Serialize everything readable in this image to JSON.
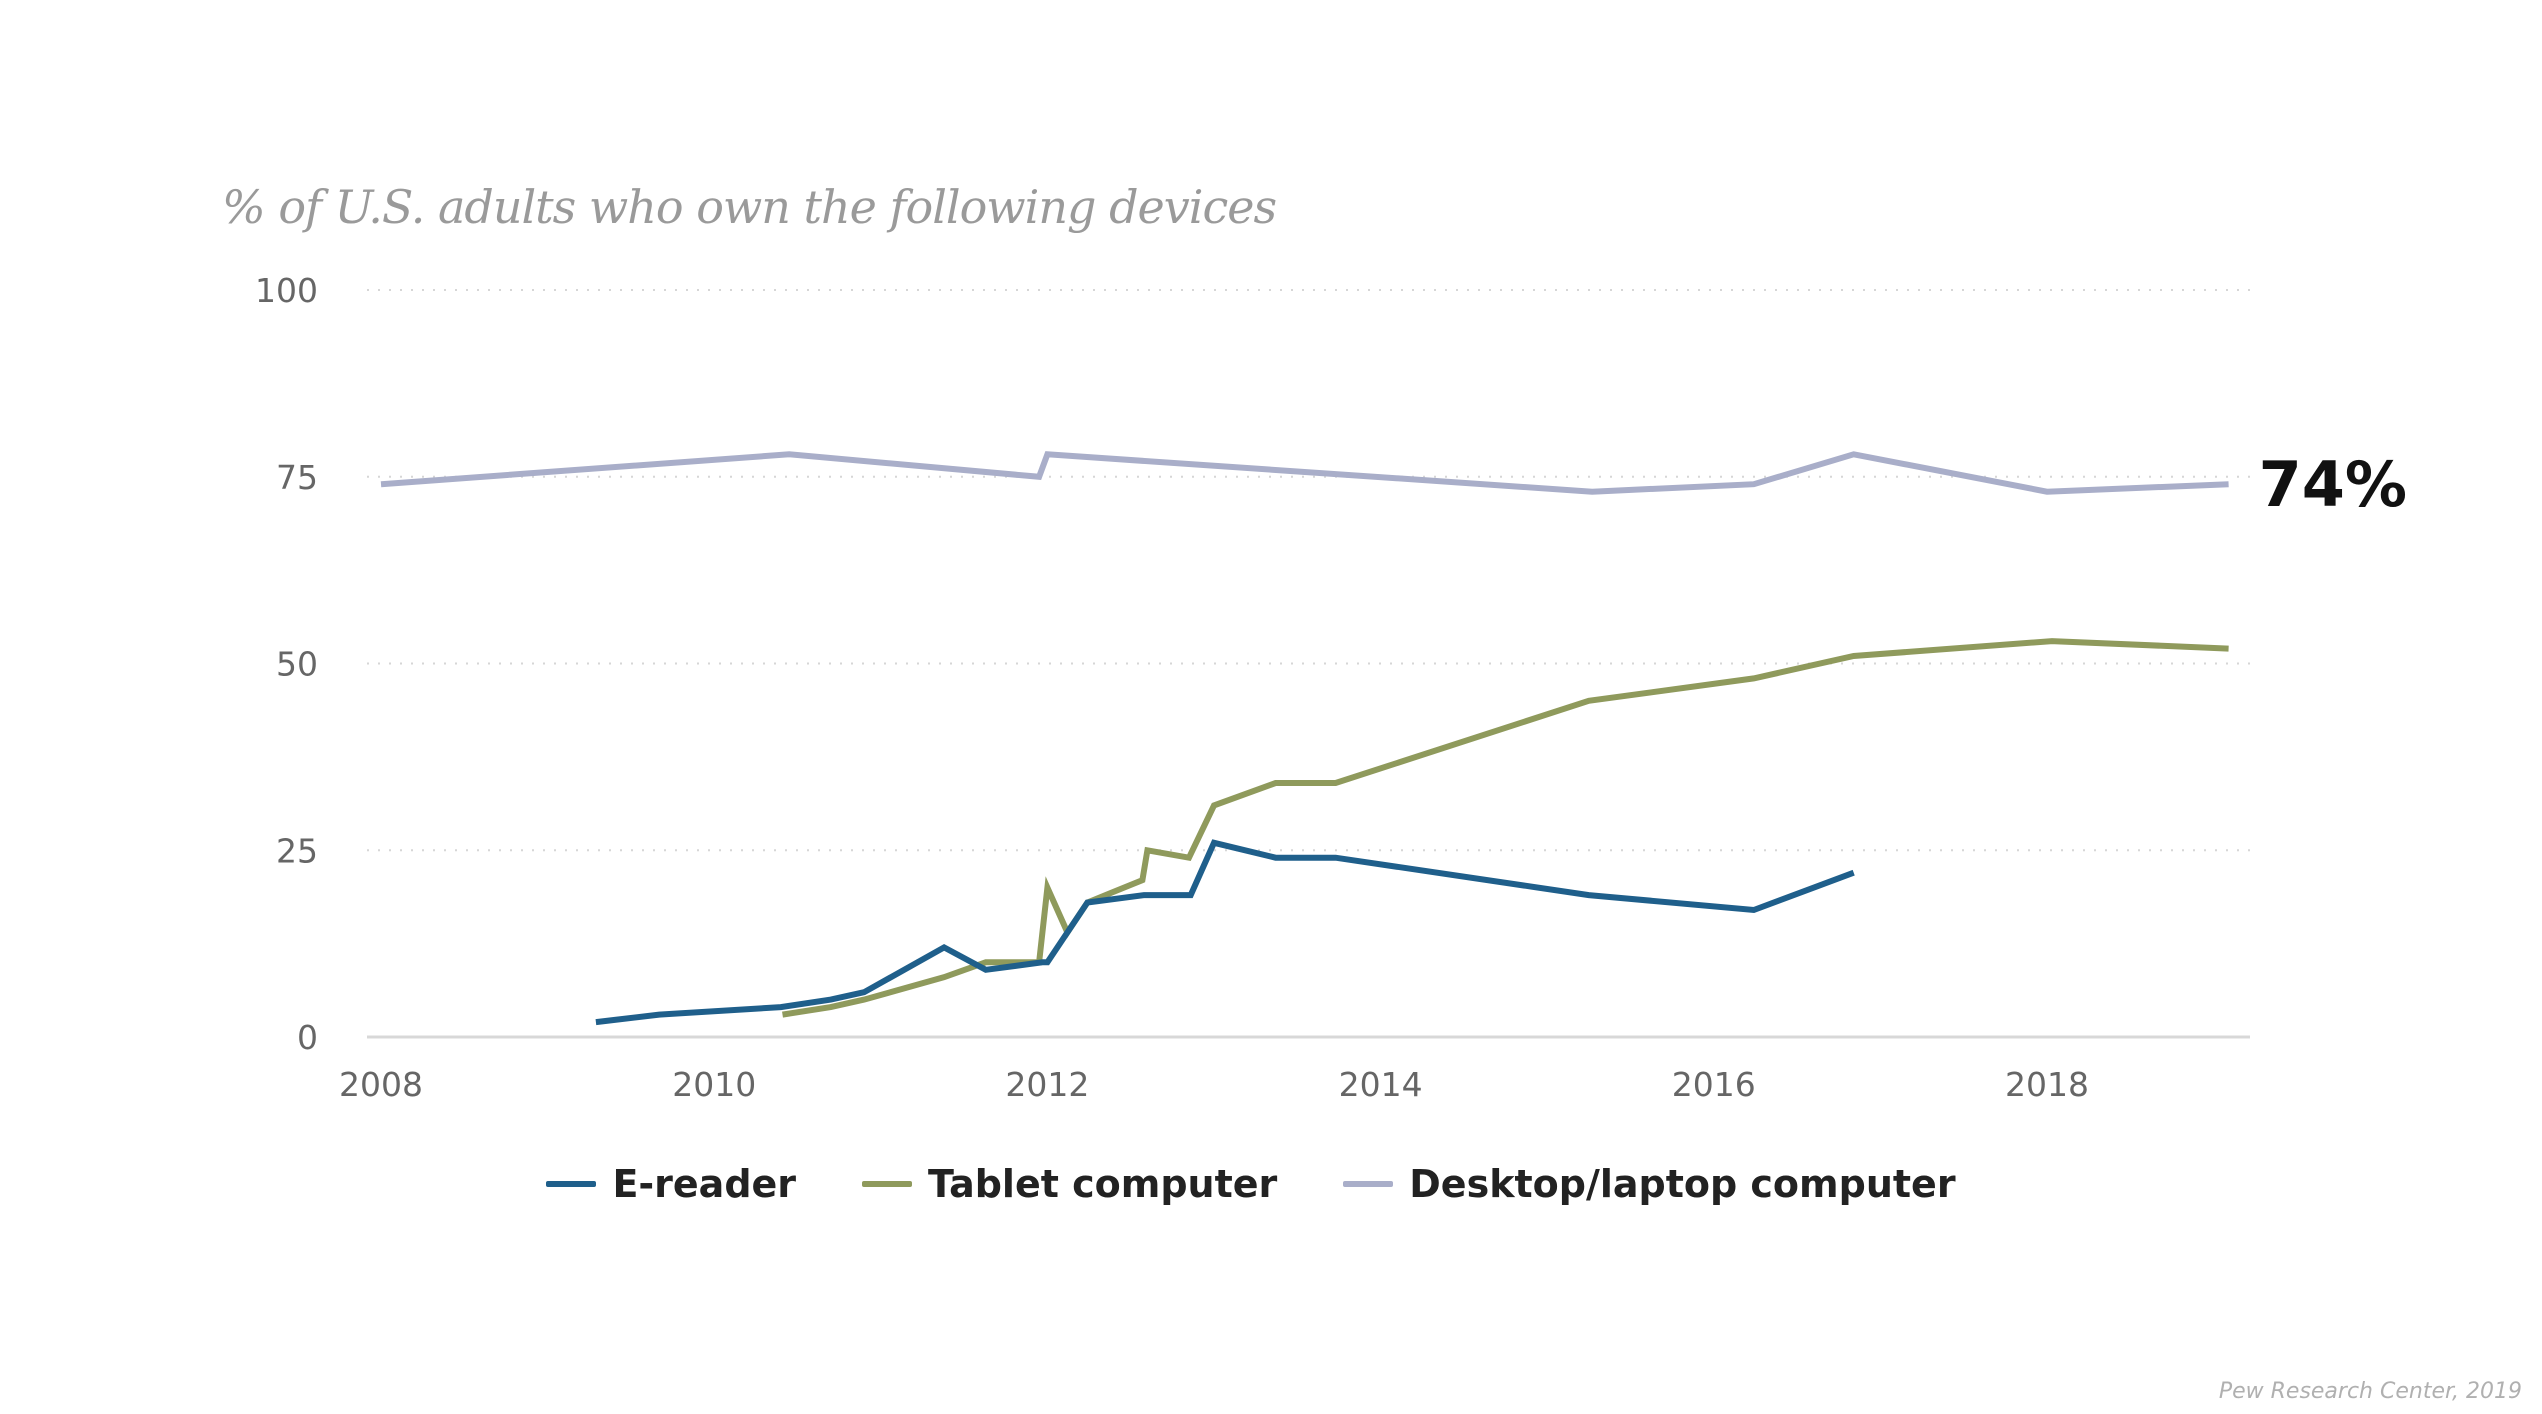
{
  "chart_data": {
    "type": "line",
    "title": "% of U.S. adults who own the following devices",
    "xlabel": "",
    "ylabel": "",
    "xlim": [
      2008,
      2019.3
    ],
    "ylim": [
      0,
      100
    ],
    "x_ticks": [
      "2008",
      "2010",
      "2012",
      "2014",
      "2016",
      "2018"
    ],
    "x_tick_values": [
      2008,
      2010,
      2012,
      2014,
      2016,
      2018
    ],
    "y_ticks": [
      "0",
      "25",
      "50",
      "75",
      "100"
    ],
    "y_tick_values": [
      0,
      25,
      50,
      75,
      100
    ],
    "grid": "horizontal dotted",
    "legend_position": "bottom-center",
    "series": [
      {
        "name": "E-reader",
        "color": "#1f5f8b",
        "points": [
          [
            2009.29,
            2
          ],
          [
            2009.67,
            3
          ],
          [
            2010.4,
            4
          ],
          [
            2010.7,
            5
          ],
          [
            2010.9,
            6
          ],
          [
            2011.38,
            12
          ],
          [
            2011.63,
            9
          ],
          [
            2011.97,
            10
          ],
          [
            2012.0,
            10
          ],
          [
            2012.24,
            18
          ],
          [
            2012.58,
            19
          ],
          [
            2012.86,
            19
          ],
          [
            2013.0,
            26
          ],
          [
            2013.37,
            24
          ],
          [
            2013.73,
            24
          ],
          [
            2015.25,
            19
          ],
          [
            2016.24,
            17
          ],
          [
            2016.84,
            22
          ]
        ]
      },
      {
        "name": "Tablet computer",
        "color": "#8f9a5c",
        "points": [
          [
            2010.41,
            3
          ],
          [
            2010.7,
            4
          ],
          [
            2010.9,
            5
          ],
          [
            2011.38,
            8
          ],
          [
            2011.63,
            10
          ],
          [
            2011.95,
            10
          ],
          [
            2012.0,
            20
          ],
          [
            2012.12,
            14
          ],
          [
            2012.24,
            18
          ],
          [
            2012.57,
            21
          ],
          [
            2012.6,
            25
          ],
          [
            2012.85,
            24
          ],
          [
            2013.0,
            31
          ],
          [
            2013.37,
            34
          ],
          [
            2013.73,
            34
          ],
          [
            2015.25,
            45
          ],
          [
            2016.24,
            48
          ],
          [
            2016.84,
            51
          ],
          [
            2018.03,
            53
          ],
          [
            2019.09,
            52
          ]
        ]
      },
      {
        "name": "Desktop/laptop computer",
        "color": "#a9aec9",
        "points": [
          [
            2008.0,
            74
          ],
          [
            2010.45,
            78
          ],
          [
            2011.95,
            75
          ],
          [
            2012.0,
            78
          ],
          [
            2015.27,
            73
          ],
          [
            2016.24,
            74
          ],
          [
            2016.84,
            78
          ],
          [
            2018.0,
            73
          ],
          [
            2019.09,
            74
          ]
        ]
      }
    ],
    "annotations": [
      {
        "text": "74%",
        "series": "Desktop/laptop computer",
        "x": 2019.09,
        "y": 74
      }
    ],
    "source": "Pew Research Center, 2019"
  }
}
